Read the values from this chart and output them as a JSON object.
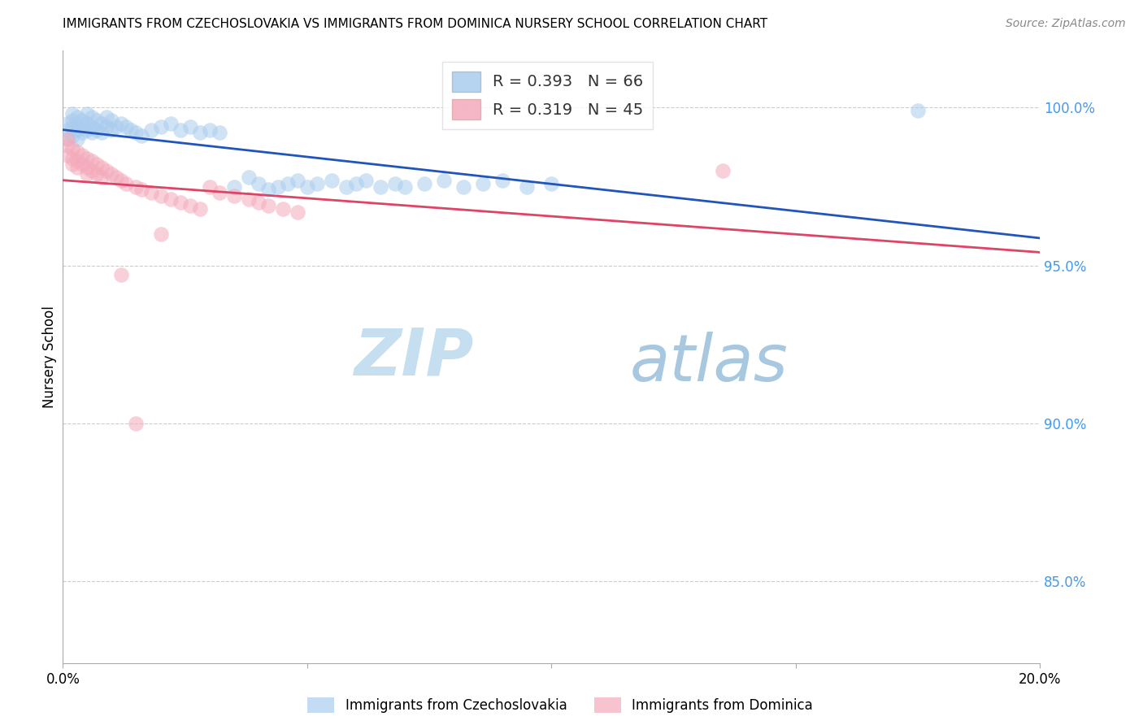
{
  "title": "IMMIGRANTS FROM CZECHOSLOVAKIA VS IMMIGRANTS FROM DOMINICA NURSERY SCHOOL CORRELATION CHART",
  "source": "Source: ZipAtlas.com",
  "ylabel": "Nursery School",
  "ytick_labels": [
    "100.0%",
    "95.0%",
    "90.0%",
    "85.0%"
  ],
  "ytick_values": [
    1.0,
    0.95,
    0.9,
    0.85
  ],
  "xmin": 0.0,
  "xmax": 0.2,
  "ymin": 0.824,
  "ymax": 1.018,
  "legend_r1": "R = 0.393",
  "legend_n1": "N = 66",
  "legend_r2": "R = 0.319",
  "legend_n2": "N = 45",
  "color_blue": "#aaccee",
  "color_pink": "#f4aabb",
  "line_blue": "#2255bb",
  "line_pink": "#dd4466",
  "label_czecho": "Immigrants from Czechoslovakia",
  "label_dominica": "Immigrants from Dominica",
  "czecho_x": [
    0.001,
    0.001,
    0.001,
    0.002,
    0.002,
    0.002,
    0.002,
    0.003,
    0.003,
    0.003,
    0.003,
    0.004,
    0.004,
    0.004,
    0.005,
    0.005,
    0.005,
    0.006,
    0.006,
    0.006,
    0.007,
    0.007,
    0.008,
    0.008,
    0.009,
    0.009,
    0.01,
    0.01,
    0.011,
    0.012,
    0.013,
    0.014,
    0.015,
    0.016,
    0.018,
    0.02,
    0.022,
    0.024,
    0.026,
    0.028,
    0.03,
    0.032,
    0.035,
    0.038,
    0.04,
    0.042,
    0.044,
    0.046,
    0.048,
    0.05,
    0.052,
    0.055,
    0.058,
    0.06,
    0.062,
    0.065,
    0.068,
    0.07,
    0.074,
    0.078,
    0.082,
    0.086,
    0.09,
    0.095,
    0.1,
    0.175
  ],
  "czecho_y": [
    0.995,
    0.993,
    0.99,
    0.998,
    0.996,
    0.994,
    0.991,
    0.997,
    0.995,
    0.993,
    0.99,
    0.996,
    0.994,
    0.992,
    0.998,
    0.995,
    0.993,
    0.997,
    0.994,
    0.992,
    0.996,
    0.993,
    0.995,
    0.992,
    0.997,
    0.994,
    0.996,
    0.993,
    0.994,
    0.995,
    0.994,
    0.993,
    0.992,
    0.991,
    0.993,
    0.994,
    0.995,
    0.993,
    0.994,
    0.992,
    0.993,
    0.992,
    0.975,
    0.978,
    0.976,
    0.974,
    0.975,
    0.976,
    0.977,
    0.975,
    0.976,
    0.977,
    0.975,
    0.976,
    0.977,
    0.975,
    0.976,
    0.975,
    0.976,
    0.977,
    0.975,
    0.976,
    0.977,
    0.975,
    0.976,
    0.999
  ],
  "dominica_x": [
    0.001,
    0.001,
    0.001,
    0.002,
    0.002,
    0.002,
    0.003,
    0.003,
    0.003,
    0.004,
    0.004,
    0.005,
    0.005,
    0.005,
    0.006,
    0.006,
    0.007,
    0.007,
    0.008,
    0.008,
    0.009,
    0.01,
    0.011,
    0.012,
    0.013,
    0.015,
    0.016,
    0.018,
    0.02,
    0.022,
    0.024,
    0.026,
    0.028,
    0.03,
    0.032,
    0.035,
    0.038,
    0.04,
    0.042,
    0.045,
    0.048,
    0.012,
    0.02,
    0.135,
    0.015
  ],
  "dominica_y": [
    0.99,
    0.988,
    0.985,
    0.987,
    0.984,
    0.982,
    0.986,
    0.983,
    0.981,
    0.985,
    0.982,
    0.984,
    0.981,
    0.979,
    0.983,
    0.98,
    0.982,
    0.979,
    0.981,
    0.978,
    0.98,
    0.979,
    0.978,
    0.977,
    0.976,
    0.975,
    0.974,
    0.973,
    0.972,
    0.971,
    0.97,
    0.969,
    0.968,
    0.975,
    0.973,
    0.972,
    0.971,
    0.97,
    0.969,
    0.968,
    0.967,
    0.947,
    0.96,
    0.98,
    0.9
  ]
}
